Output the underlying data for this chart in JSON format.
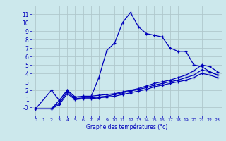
{
  "xlabel": "Graphe des températures (°c)",
  "background_color": "#cce8ec",
  "line_color": "#0000bb",
  "grid_color": "#b0c8cc",
  "xlim": [
    -0.5,
    23.5
  ],
  "ylim": [
    -1,
    12
  ],
  "xticks": [
    0,
    1,
    2,
    3,
    4,
    5,
    6,
    7,
    8,
    9,
    10,
    11,
    12,
    13,
    14,
    15,
    16,
    17,
    18,
    19,
    20,
    21,
    22,
    23
  ],
  "yticks": [
    0,
    1,
    2,
    3,
    4,
    5,
    6,
    7,
    8,
    9,
    10,
    11
  ],
  "ytick_labels": [
    "-0",
    "1",
    "2",
    "3",
    "4",
    "5",
    "6",
    "7",
    "8",
    "9",
    "10",
    "11"
  ],
  "series": [
    {
      "x": [
        0,
        2,
        3,
        4,
        5,
        6,
        7,
        8,
        9,
        10,
        11,
        12,
        13,
        14,
        15,
        16,
        17,
        18,
        19,
        20,
        21,
        22,
        23
      ],
      "y": [
        -0.2,
        2.0,
        0.8,
        2.0,
        1.2,
        1.2,
        1.2,
        3.5,
        6.7,
        7.6,
        10.0,
        11.2,
        9.5,
        8.7,
        8.5,
        8.3,
        7.0,
        6.6,
        6.6,
        5.0,
        4.8,
        4.2,
        3.8
      ]
    },
    {
      "x": [
        0,
        2,
        3,
        4,
        5,
        6,
        7,
        8,
        9,
        10,
        11,
        12,
        13,
        14,
        15,
        16,
        17,
        18,
        19,
        20,
        21,
        22,
        23
      ],
      "y": [
        -0.2,
        -0.2,
        0.8,
        2.0,
        1.2,
        1.3,
        1.3,
        1.4,
        1.5,
        1.6,
        1.8,
        2.0,
        2.2,
        2.5,
        2.8,
        3.0,
        3.2,
        3.5,
        3.8,
        4.3,
        5.0,
        4.8,
        4.2
      ]
    },
    {
      "x": [
        0,
        2,
        3,
        4,
        5,
        6,
        7,
        8,
        9,
        10,
        11,
        12,
        13,
        14,
        15,
        16,
        17,
        18,
        19,
        20,
        21,
        22,
        23
      ],
      "y": [
        -0.2,
        -0.2,
        0.5,
        1.8,
        1.0,
        1.1,
        1.1,
        1.2,
        1.3,
        1.5,
        1.7,
        1.9,
        2.1,
        2.3,
        2.6,
        2.8,
        3.0,
        3.2,
        3.5,
        3.8,
        4.4,
        4.2,
        3.8
      ]
    },
    {
      "x": [
        0,
        2,
        3,
        4,
        5,
        6,
        7,
        8,
        9,
        10,
        11,
        12,
        13,
        14,
        15,
        16,
        17,
        18,
        19,
        20,
        21,
        22,
        23
      ],
      "y": [
        -0.2,
        -0.2,
        0.3,
        1.6,
        0.9,
        1.0,
        1.0,
        1.1,
        1.2,
        1.3,
        1.5,
        1.7,
        1.9,
        2.1,
        2.4,
        2.6,
        2.8,
        3.0,
        3.2,
        3.5,
        4.0,
        3.8,
        3.5
      ]
    }
  ]
}
